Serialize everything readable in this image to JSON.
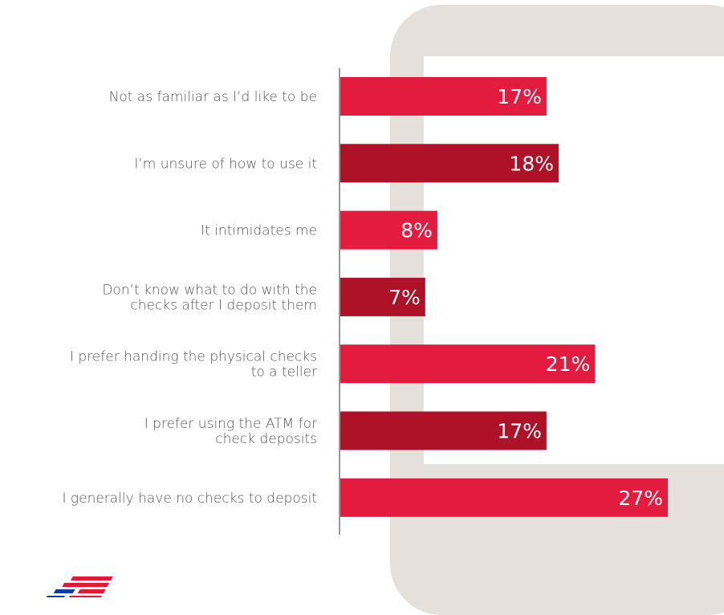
{
  "colors": {
    "bar_light": "#e31b3f",
    "bar_dark": "#ad1229",
    "axis": "#999999",
    "phone_bezel": "#e5e0dc",
    "logo_red": "#e31837",
    "logo_blue": "#0a3fa0"
  },
  "chart_data": {
    "type": "bar",
    "orientation": "horizontal",
    "categories": [
      "Not as familiar as I’d like to be",
      "I’m unsure of how to use it",
      "It intimidates me",
      "Don’t know what to do with the checks after I deposit them",
      "I prefer handing the physical checks to a teller",
      "I prefer using the ATM for check deposits",
      "I generally have no checks to deposit"
    ],
    "category_lines": [
      [
        "Not as familiar as I’d like to be"
      ],
      [
        "I’m unsure of how to use it"
      ],
      [
        "It intimidates me"
      ],
      [
        "Don’t know what to do with the",
        "checks after I deposit them"
      ],
      [
        "I prefer handing the physical checks",
        "to a teller"
      ],
      [
        "I prefer using the ATM for",
        "check deposits"
      ],
      [
        "I generally have no checks to deposit"
      ]
    ],
    "values": [
      17,
      18,
      8,
      7,
      21,
      17,
      27
    ],
    "data_labels": [
      "17%",
      "18%",
      "8%",
      "7%",
      "21%",
      "17%",
      "27%"
    ],
    "bar_shades": [
      "light",
      "dark",
      "light",
      "dark",
      "light",
      "dark",
      "light"
    ],
    "xlim": [
      0,
      27
    ],
    "title": "",
    "xlabel": "",
    "ylabel": "",
    "grid": false,
    "legend": "none"
  },
  "logo": {
    "icon": "bank-flag-logo-icon"
  }
}
